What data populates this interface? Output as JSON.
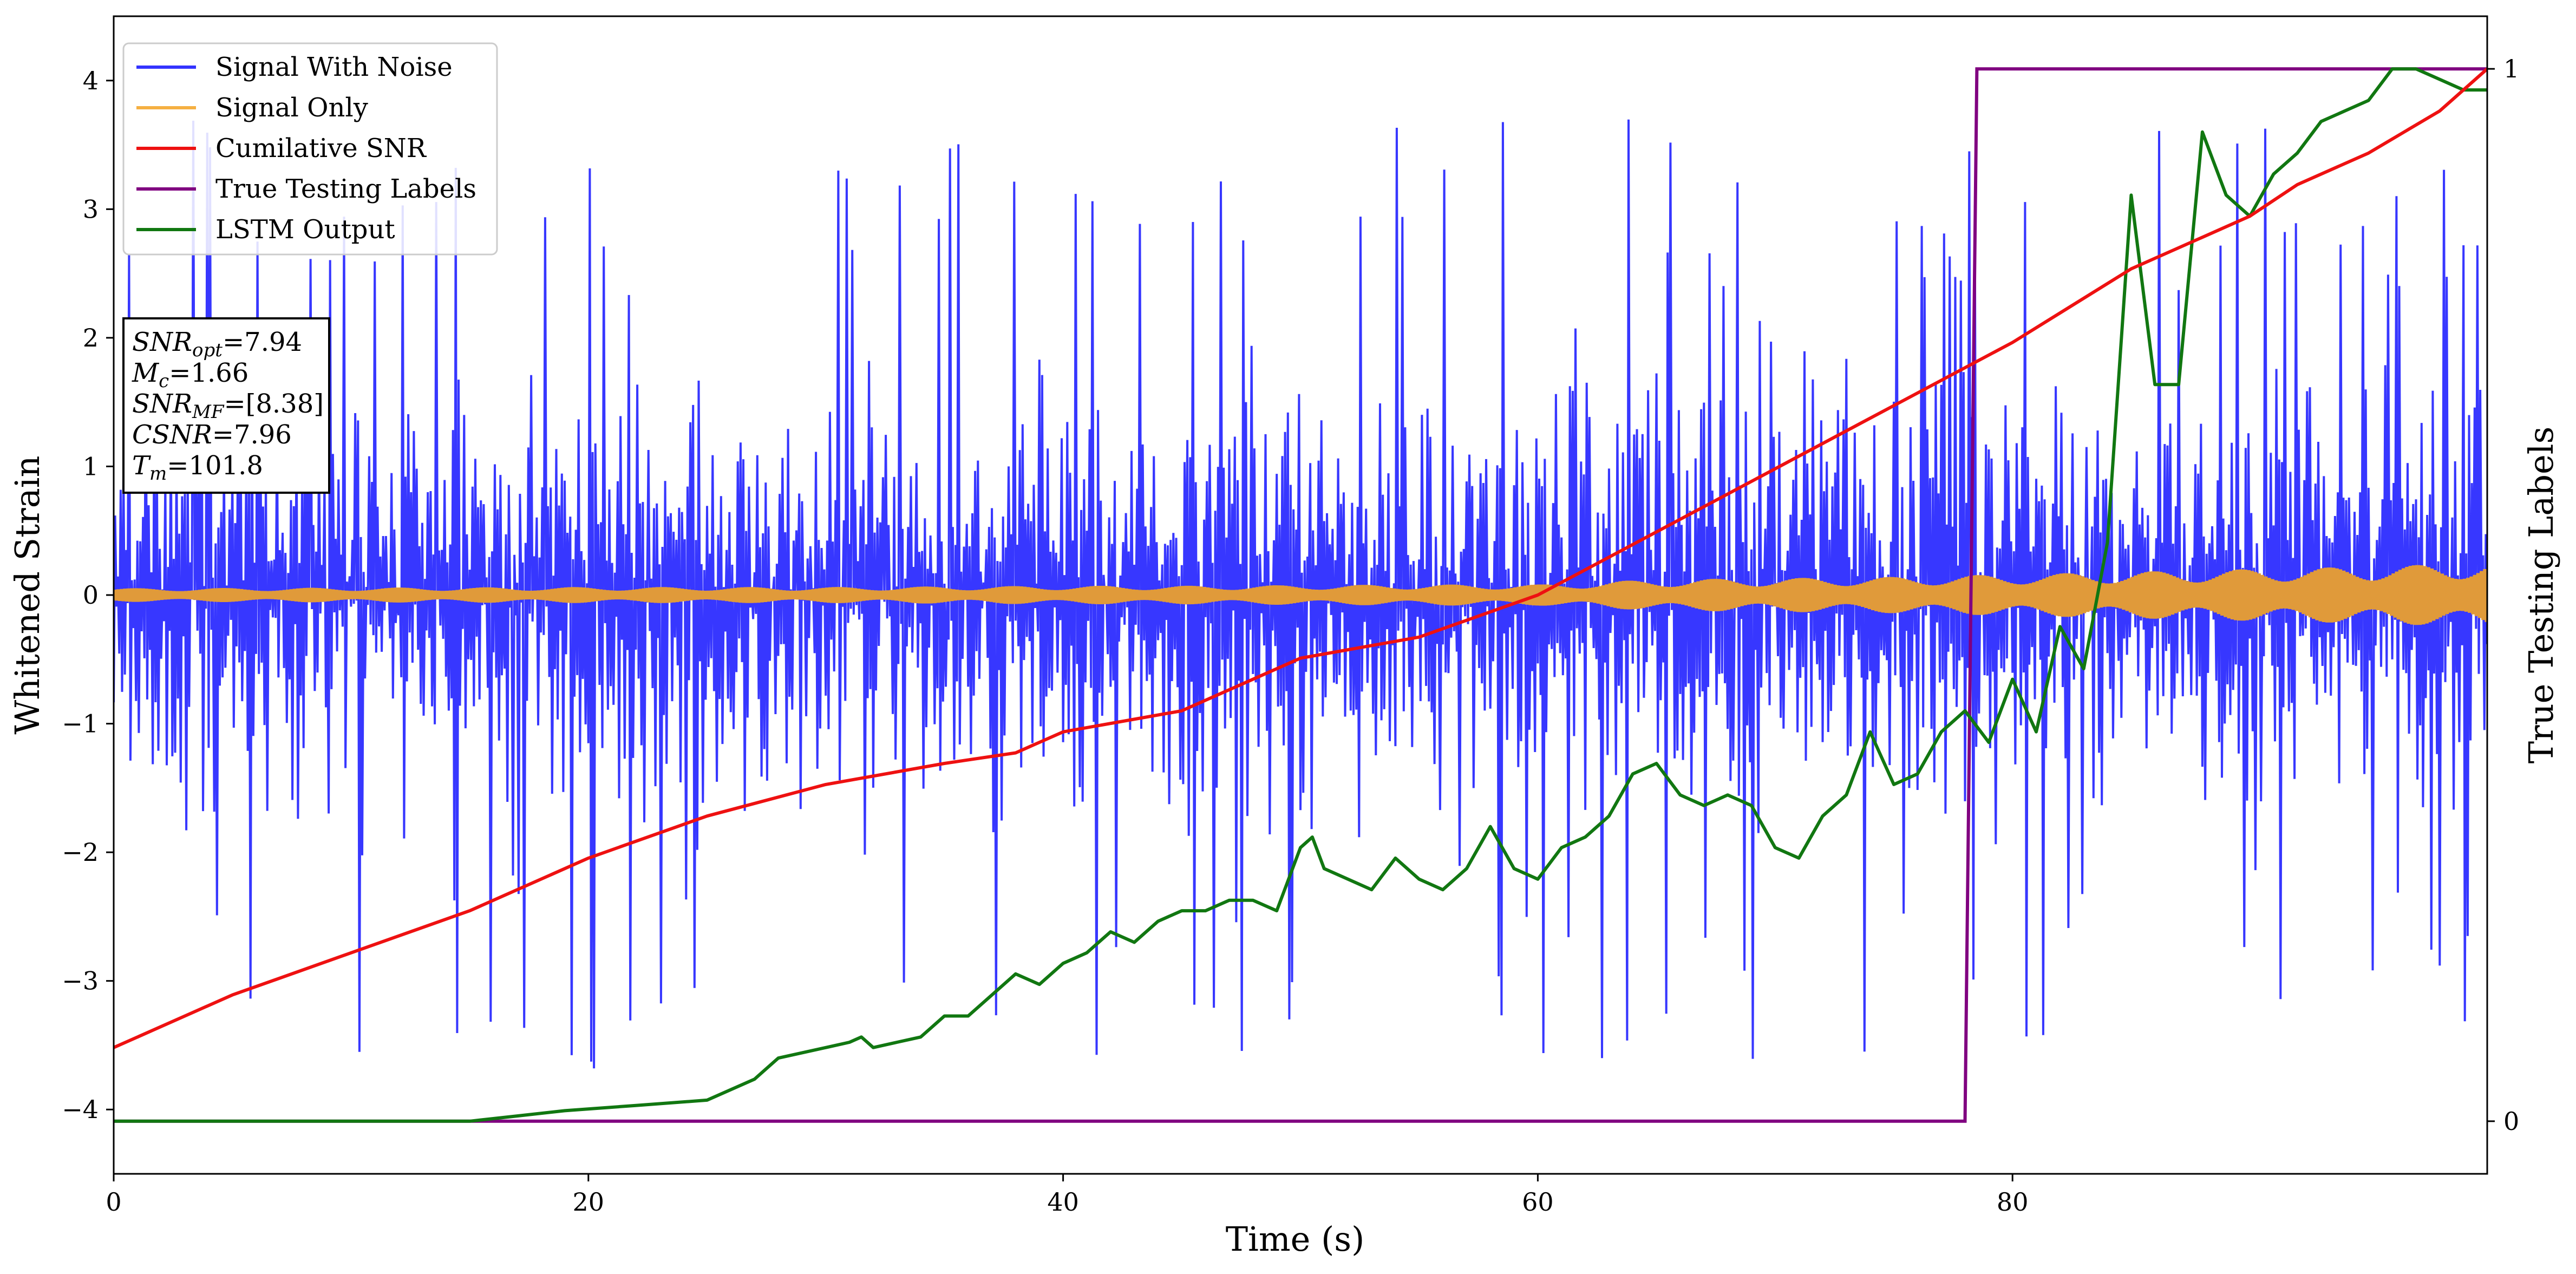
{
  "chart_data": {
    "type": "line",
    "xlabel": "Time (s)",
    "ylabel": "Whitened Strain",
    "ylabel_right": "True Testing Labels",
    "xlim": [
      0,
      100
    ],
    "ylim": [
      -4.5,
      4.5
    ],
    "ylim_right": [
      -0.05,
      1.05
    ],
    "x_ticks": [
      "0",
      "20",
      "40",
      "60",
      "80"
    ],
    "y_ticks": [
      "−4",
      "−3",
      "−2",
      "−1",
      "0",
      "1",
      "2",
      "3",
      "4"
    ],
    "y_ticks_right": [
      "0",
      "1"
    ],
    "grid": false,
    "legend_position": "top-left",
    "legend": [
      {
        "label": "Signal With Noise",
        "color": "#3333ff"
      },
      {
        "label": "Signal Only",
        "color": "#f5b042"
      },
      {
        "label": "Cumilative SNR",
        "color": "#ee1111"
      },
      {
        "label": "True Testing Labels",
        "color": "#800080"
      },
      {
        "label": "LSTM Output",
        "color": "#117711"
      }
    ],
    "info_box": {
      "lines": [
        {
          "name": "SNR",
          "sub": "opt",
          "value": "=7.94"
        },
        {
          "name": "M",
          "sub": "c",
          "value": "=1.66"
        },
        {
          "name": "SNR",
          "sub": "MF",
          "value": "=[8.38]"
        },
        {
          "name": "CSNR",
          "sub": "",
          "value": "=7.96"
        },
        {
          "name": "T",
          "sub": "m",
          "value": "=101.8"
        }
      ]
    },
    "series": [
      {
        "name": "Signal With Noise",
        "axis": "left",
        "color": "#3333ff",
        "kind": "noise",
        "x_range": [
          0,
          100
        ],
        "typical_peak": 2.3,
        "max_peak": 3.7,
        "min_trough": -4.1
      },
      {
        "name": "Signal Only",
        "axis": "left",
        "color": "#e09a3a",
        "kind": "envelope",
        "x": [
          0,
          20,
          30,
          40,
          45,
          55,
          60,
          65,
          70,
          75,
          80,
          85,
          90,
          95,
          100
        ],
        "amplitude": [
          0.05,
          0.06,
          0.06,
          0.07,
          0.07,
          0.08,
          0.08,
          0.12,
          0.13,
          0.14,
          0.16,
          0.18,
          0.2,
          0.22,
          0.25
        ]
      },
      {
        "name": "Cumilative SNR",
        "axis": "right",
        "color": "#ee1111",
        "x": [
          0,
          5,
          10,
          15,
          20,
          25,
          30,
          35,
          38,
          40,
          45,
          50,
          55,
          60,
          65,
          70,
          75,
          80,
          85,
          88,
          90,
          92,
          95,
          98,
          100
        ],
        "y": [
          0.07,
          0.12,
          0.16,
          0.2,
          0.25,
          0.29,
          0.32,
          0.34,
          0.35,
          0.37,
          0.39,
          0.44,
          0.46,
          0.5,
          0.56,
          0.62,
          0.68,
          0.74,
          0.81,
          0.84,
          0.86,
          0.89,
          0.92,
          0.96,
          1.0
        ]
      },
      {
        "name": "True Testing Labels",
        "axis": "right",
        "color": "#800080",
        "x": [
          0,
          78,
          78.5,
          100
        ],
        "y": [
          0,
          0,
          1,
          1
        ]
      },
      {
        "name": "LSTM Output",
        "axis": "right",
        "color": "#117711",
        "x": [
          0,
          15,
          17,
          19,
          22,
          25,
          27,
          28,
          30,
          31,
          31.5,
          32,
          33,
          34,
          35,
          36,
          37,
          38,
          39,
          40,
          41,
          42,
          43,
          44,
          45,
          46,
          47,
          48,
          49,
          50,
          50.5,
          51,
          52,
          53,
          54,
          55,
          56,
          57,
          58,
          59,
          60,
          61,
          62,
          63,
          64,
          65,
          66,
          67,
          68,
          69,
          70,
          71,
          72,
          73,
          74,
          75,
          76,
          77,
          78,
          79,
          80,
          81,
          82,
          83,
          84,
          85,
          86,
          87,
          88,
          88.5,
          89,
          90,
          91,
          92,
          93,
          94,
          95,
          96,
          97,
          98,
          99,
          100
        ],
        "y": [
          0.0,
          0.0,
          0.005,
          0.01,
          0.015,
          0.02,
          0.04,
          0.06,
          0.07,
          0.075,
          0.08,
          0.07,
          0.075,
          0.08,
          0.1,
          0.1,
          0.12,
          0.14,
          0.13,
          0.15,
          0.16,
          0.18,
          0.17,
          0.19,
          0.2,
          0.2,
          0.21,
          0.21,
          0.2,
          0.26,
          0.27,
          0.24,
          0.23,
          0.22,
          0.25,
          0.23,
          0.22,
          0.24,
          0.28,
          0.24,
          0.23,
          0.26,
          0.27,
          0.29,
          0.33,
          0.34,
          0.31,
          0.3,
          0.31,
          0.3,
          0.26,
          0.25,
          0.29,
          0.31,
          0.37,
          0.32,
          0.33,
          0.37,
          0.39,
          0.36,
          0.42,
          0.37,
          0.47,
          0.43,
          0.55,
          0.88,
          0.7,
          0.7,
          0.94,
          0.91,
          0.88,
          0.86,
          0.9,
          0.92,
          0.95,
          0.96,
          0.97,
          1.0,
          1.0,
          0.99,
          0.98,
          0.98
        ]
      }
    ]
  }
}
